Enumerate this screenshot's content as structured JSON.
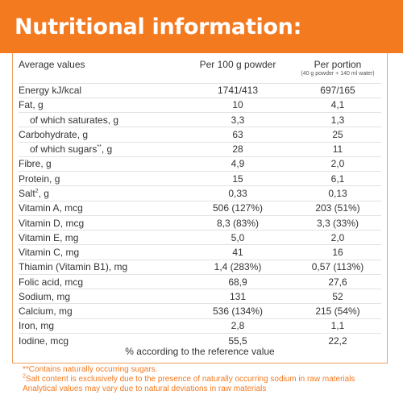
{
  "title": "Nutritional information:",
  "table": {
    "headers": {
      "name": "Average values",
      "per100": "Per 100 g powder",
      "portion": "Per portion",
      "portion_sub": "(40 g powder + 140 ml water)"
    },
    "rows": [
      {
        "name": "Energy kJ/kcal",
        "per100": "1741/413",
        "portion": "697/165"
      },
      {
        "name": "Fat, g",
        "per100": "10",
        "portion": "4,1"
      },
      {
        "name": "of which saturates, g",
        "per100": "3,3",
        "portion": "1,3"
      },
      {
        "name": "Carbohydrate, g",
        "per100": "63",
        "portion": "25"
      },
      {
        "name": "of which sugars",
        "sup": "**",
        "name_suffix": ", g",
        "per100": "28",
        "portion": "11"
      },
      {
        "name": "Fibre, g",
        "per100": "4,9",
        "portion": "2,0"
      },
      {
        "name": "Protein, g",
        "per100": "15",
        "portion": "6,1"
      },
      {
        "name": "Salt",
        "sup": "2",
        "name_suffix": ", g",
        "per100": "0,33",
        "portion": "0,13"
      },
      {
        "name": "Vitamin A, mcg",
        "per100": "506 (127%)",
        "portion": "203 (51%)"
      },
      {
        "name": "Vitamin D, mcg",
        "per100": "8,3 (83%)",
        "portion": "3,3 (33%)"
      },
      {
        "name": "Vitamin E, mg",
        "per100": "5,0",
        "portion": "2,0"
      },
      {
        "name": "Vitamin C, mg",
        "per100": "41",
        "portion": "16"
      },
      {
        "name": "Thiamin (Vitamin B1), mg",
        "per100": "1,4 (283%)",
        "portion": "0,57 (113%)"
      },
      {
        "name": "Folic acid, mcg",
        "per100": "68,9",
        "portion": "27,6"
      },
      {
        "name": "Sodium, mg",
        "per100": "131",
        "portion": "52"
      },
      {
        "name": "Calcium, mg",
        "per100": "536 (134%)",
        "portion": "215 (54%)"
      },
      {
        "name": "Iron, mg",
        "per100": "2,8",
        "portion": "1,1"
      },
      {
        "name": "Iodine, mcg",
        "per100": "55,5",
        "portion": "22,2"
      }
    ]
  },
  "reference_note": "% according to the reference value",
  "footnotes": {
    "sugars": "**Contains naturally occurring sugars.",
    "salt_sup": "2",
    "salt": "Salt content is exclusively due to the presence of naturally occurring sodium in raw materials",
    "analytical": "Analytical values may vary due to natural deviations in raw materials"
  },
  "colors": {
    "accent": "#f47a20",
    "text": "#333333"
  }
}
